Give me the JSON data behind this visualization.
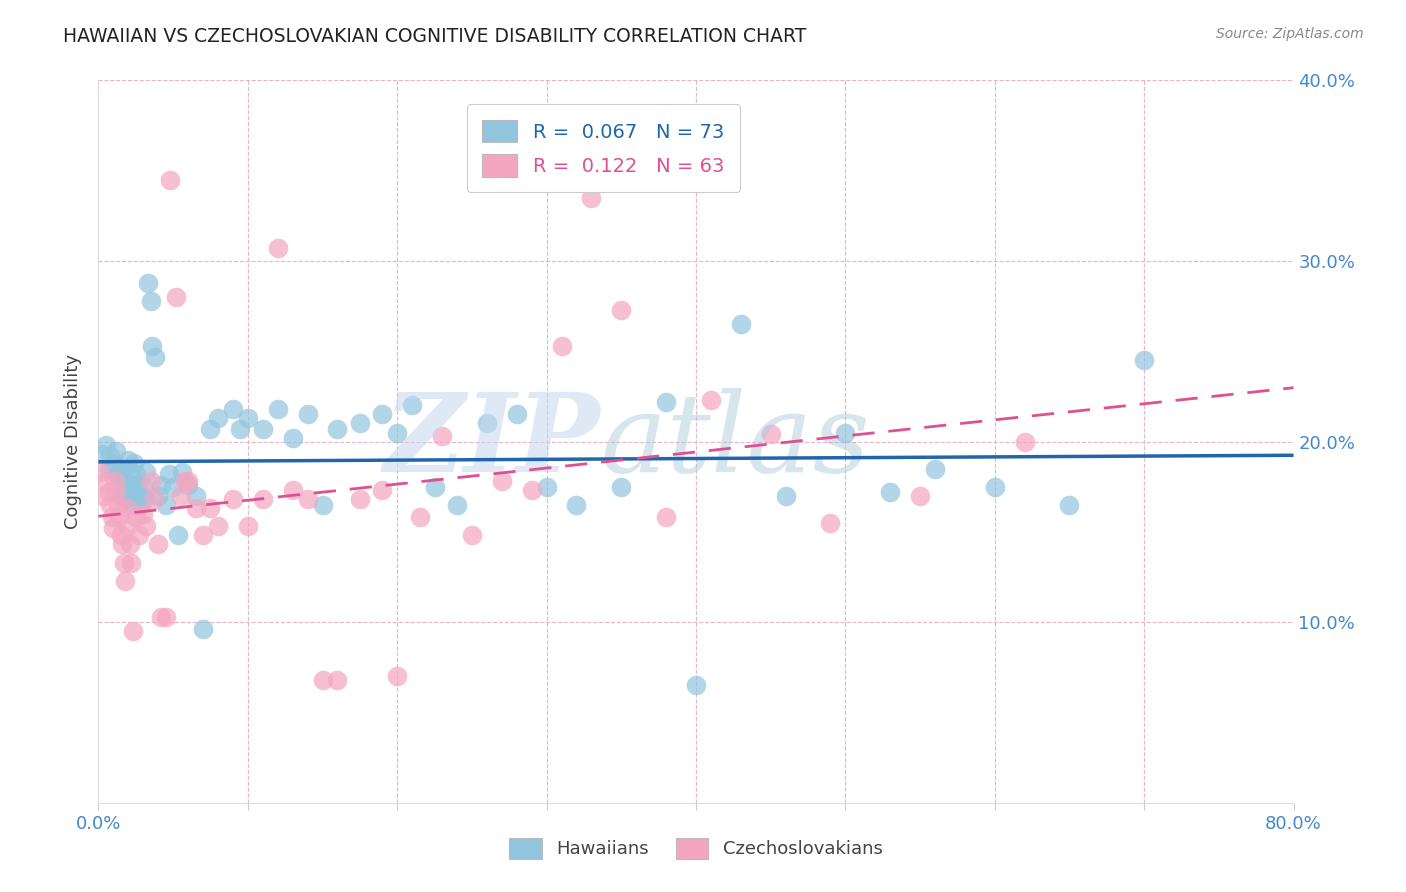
{
  "title": "HAWAIIAN VS CZECHOSLOVAKIAN COGNITIVE DISABILITY CORRELATION CHART",
  "source": "Source: ZipAtlas.com",
  "ylabel": "Cognitive Disability",
  "xlim": [
    0,
    0.8
  ],
  "ylim": [
    0,
    0.4
  ],
  "yticks": [
    0.0,
    0.1,
    0.2,
    0.3,
    0.4
  ],
  "xticks": [
    0.0,
    0.1,
    0.2,
    0.3,
    0.4,
    0.5,
    0.6,
    0.7,
    0.8
  ],
  "ytick_labels": [
    "",
    "10.0%",
    "20.0%",
    "30.0%",
    "40.0%"
  ],
  "xtick_labels_visible": [
    "0.0%",
    "80.0%"
  ],
  "xtick_pos_visible": [
    0.0,
    0.8
  ],
  "hawaiian_color": "#92c5de",
  "czech_color": "#f4a6c0",
  "trend_blue": "#2166ac",
  "trend_pink": "#e05090",
  "R_hawaiian": 0.067,
  "N_hawaiian": 73,
  "R_czech": 0.122,
  "N_czech": 63,
  "hawaiian_x": [
    0.002,
    0.005,
    0.007,
    0.008,
    0.01,
    0.012,
    0.013,
    0.014,
    0.015,
    0.015,
    0.016,
    0.017,
    0.018,
    0.019,
    0.02,
    0.021,
    0.022,
    0.022,
    0.023,
    0.024,
    0.025,
    0.026,
    0.027,
    0.028,
    0.03,
    0.031,
    0.032,
    0.033,
    0.035,
    0.036,
    0.038,
    0.04,
    0.042,
    0.045,
    0.047,
    0.05,
    0.053,
    0.056,
    0.06,
    0.065,
    0.07,
    0.075,
    0.08,
    0.09,
    0.095,
    0.1,
    0.11,
    0.12,
    0.13,
    0.14,
    0.15,
    0.16,
    0.175,
    0.19,
    0.2,
    0.21,
    0.225,
    0.24,
    0.26,
    0.28,
    0.3,
    0.32,
    0.35,
    0.38,
    0.4,
    0.43,
    0.46,
    0.5,
    0.53,
    0.56,
    0.6,
    0.65,
    0.7
  ],
  "hawaiian_y": [
    0.193,
    0.198,
    0.185,
    0.192,
    0.188,
    0.195,
    0.182,
    0.175,
    0.17,
    0.18,
    0.185,
    0.178,
    0.172,
    0.168,
    0.19,
    0.183,
    0.176,
    0.17,
    0.165,
    0.188,
    0.182,
    0.176,
    0.17,
    0.165,
    0.175,
    0.168,
    0.183,
    0.288,
    0.278,
    0.253,
    0.247,
    0.17,
    0.176,
    0.165,
    0.182,
    0.175,
    0.148,
    0.183,
    0.176,
    0.17,
    0.096,
    0.207,
    0.213,
    0.218,
    0.207,
    0.213,
    0.207,
    0.218,
    0.202,
    0.215,
    0.165,
    0.207,
    0.21,
    0.215,
    0.205,
    0.22,
    0.175,
    0.165,
    0.21,
    0.215,
    0.175,
    0.165,
    0.175,
    0.222,
    0.065,
    0.265,
    0.17,
    0.205,
    0.172,
    0.185,
    0.175,
    0.165,
    0.245
  ],
  "czech_x": [
    0.001,
    0.003,
    0.005,
    0.007,
    0.008,
    0.009,
    0.01,
    0.011,
    0.012,
    0.013,
    0.014,
    0.015,
    0.016,
    0.017,
    0.018,
    0.019,
    0.02,
    0.021,
    0.022,
    0.023,
    0.025,
    0.027,
    0.03,
    0.032,
    0.035,
    0.037,
    0.04,
    0.042,
    0.045,
    0.048,
    0.052,
    0.055,
    0.058,
    0.06,
    0.065,
    0.07,
    0.075,
    0.08,
    0.09,
    0.1,
    0.11,
    0.12,
    0.13,
    0.14,
    0.15,
    0.16,
    0.175,
    0.19,
    0.2,
    0.215,
    0.23,
    0.25,
    0.27,
    0.29,
    0.31,
    0.33,
    0.35,
    0.38,
    0.41,
    0.45,
    0.49,
    0.55,
    0.62
  ],
  "czech_y": [
    0.183,
    0.17,
    0.178,
    0.172,
    0.165,
    0.158,
    0.152,
    0.178,
    0.172,
    0.165,
    0.158,
    0.148,
    0.143,
    0.133,
    0.123,
    0.163,
    0.153,
    0.143,
    0.133,
    0.095,
    0.158,
    0.148,
    0.16,
    0.153,
    0.178,
    0.168,
    0.143,
    0.103,
    0.103,
    0.345,
    0.28,
    0.17,
    0.178,
    0.178,
    0.163,
    0.148,
    0.163,
    0.153,
    0.168,
    0.153,
    0.168,
    0.307,
    0.173,
    0.168,
    0.068,
    0.068,
    0.168,
    0.173,
    0.07,
    0.158,
    0.203,
    0.148,
    0.178,
    0.173,
    0.253,
    0.335,
    0.273,
    0.158,
    0.223,
    0.204,
    0.155,
    0.17,
    0.2
  ],
  "watermark_zip": "ZIP",
  "watermark_atlas": "atlas",
  "legend_label_hawaiian": "Hawaiians",
  "legend_label_czech": "Czechoslovakians",
  "background_color": "#ffffff",
  "grid_color": "#e8b4c8",
  "axis_color": "#4488cc",
  "title_color": "#222222",
  "legend_R_color_blue": "#2166ac",
  "legend_N_color_blue": "#2166ac",
  "legend_R_color_pink": "#e05090",
  "legend_N_color_pink": "#e05090"
}
